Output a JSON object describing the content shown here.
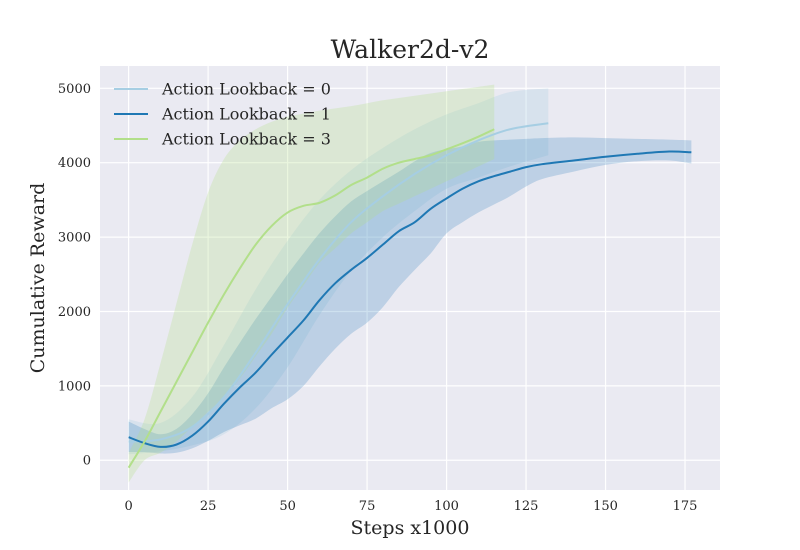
{
  "chart_data": {
    "type": "line",
    "title": "Walker2d-v2",
    "xlabel": "Steps x1000",
    "ylabel": "Cumulative Reward",
    "xlim": [
      -9,
      186
    ],
    "ylim": [
      -400,
      5300
    ],
    "xticks": [
      0,
      25,
      50,
      75,
      100,
      125,
      150,
      175
    ],
    "yticks": [
      0,
      1000,
      2000,
      3000,
      4000,
      5000
    ],
    "grid": true,
    "legend_position": "top-left",
    "series": [
      {
        "name": "Action Lookback = 0",
        "color": "#a6cee3",
        "band_opacity": 0.28,
        "x": [
          0,
          10,
          20,
          30,
          40,
          50,
          60,
          70,
          80,
          90,
          100,
          110,
          120,
          132
        ],
        "y": [
          250,
          280,
          450,
          850,
          1450,
          2100,
          2700,
          3200,
          3550,
          3850,
          4100,
          4300,
          4450,
          4530
        ],
        "upper": [
          550,
          500,
          850,
          1550,
          2300,
          2950,
          3500,
          3900,
          4200,
          4450,
          4650,
          4800,
          4950,
          5000
        ],
        "lower": [
          80,
          120,
          200,
          350,
          700,
          1250,
          1950,
          2550,
          3000,
          3350,
          3650,
          3800,
          3950,
          4100
        ]
      },
      {
        "name": "Action Lookback = 1",
        "color": "#1f78b4",
        "band_opacity": 0.22,
        "x": [
          0,
          5,
          10,
          15,
          20,
          25,
          30,
          35,
          40,
          45,
          50,
          55,
          60,
          65,
          70,
          75,
          80,
          85,
          90,
          95,
          100,
          105,
          110,
          115,
          120,
          125,
          130,
          140,
          150,
          160,
          170,
          177
        ],
        "y": [
          310,
          230,
          180,
          210,
          330,
          520,
          760,
          980,
          1180,
          1420,
          1650,
          1880,
          2150,
          2380,
          2560,
          2720,
          2900,
          3080,
          3200,
          3380,
          3520,
          3650,
          3750,
          3820,
          3880,
          3940,
          3980,
          4030,
          4080,
          4120,
          4150,
          4140
        ],
        "upper": [
          520,
          420,
          350,
          420,
          620,
          900,
          1250,
          1580,
          1900,
          2200,
          2500,
          2780,
          3050,
          3280,
          3480,
          3620,
          3750,
          3880,
          4020,
          4130,
          4180,
          4220,
          4280,
          4300,
          4310,
          4320,
          4330,
          4340,
          4330,
          4320,
          4310,
          4300
        ],
        "lower": [
          110,
          110,
          90,
          100,
          160,
          260,
          380,
          470,
          560,
          700,
          820,
          1000,
          1260,
          1500,
          1700,
          1850,
          2060,
          2330,
          2560,
          2780,
          3050,
          3200,
          3330,
          3440,
          3550,
          3680,
          3780,
          3880,
          3970,
          4020,
          4030,
          3990
        ]
      },
      {
        "name": "Action Lookback = 3",
        "color": "#b2df8a",
        "band_opacity": 0.28,
        "x": [
          0,
          5,
          10,
          15,
          20,
          25,
          30,
          35,
          40,
          45,
          50,
          55,
          60,
          65,
          70,
          75,
          80,
          85,
          90,
          95,
          100,
          105,
          110,
          115
        ],
        "y": [
          -100,
          250,
          650,
          1050,
          1450,
          1850,
          2230,
          2580,
          2900,
          3150,
          3330,
          3420,
          3460,
          3560,
          3700,
          3800,
          3920,
          4000,
          4050,
          4100,
          4180,
          4260,
          4350,
          4450
        ],
        "upper": [
          100,
          550,
          1300,
          2100,
          2900,
          3600,
          4050,
          4300,
          4450,
          4550,
          4620,
          4660,
          4700,
          4730,
          4760,
          4800,
          4840,
          4870,
          4900,
          4930,
          4960,
          4990,
          5020,
          5050
        ],
        "lower": [
          -300,
          0,
          100,
          250,
          450,
          650,
          850,
          1100,
          1400,
          1700,
          2050,
          2350,
          2650,
          2850,
          3050,
          3200,
          3350,
          3450,
          3550,
          3650,
          3750,
          3850,
          3950,
          4050
        ]
      }
    ]
  }
}
